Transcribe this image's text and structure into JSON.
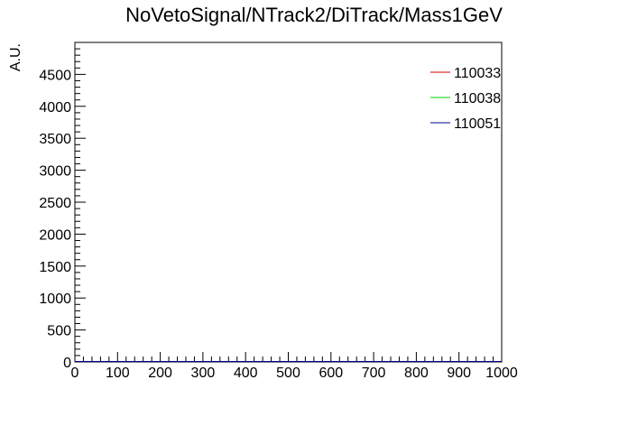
{
  "chart_data": {
    "type": "line",
    "title": "NoVetoSignal/NTrack2/DiTrack/Mass1GeV",
    "xlabel": "",
    "ylabel": "A.U.",
    "xlim": [
      0,
      1000
    ],
    "ylim": [
      0,
      5000
    ],
    "x_ticks": [
      0,
      100,
      200,
      300,
      400,
      500,
      600,
      700,
      800,
      900,
      1000
    ],
    "y_ticks": [
      0,
      500,
      1000,
      1500,
      2000,
      2500,
      3000,
      3500,
      4000,
      4500
    ],
    "grid": false,
    "legend_position": "top-right",
    "series": [
      {
        "name": "110033",
        "color": "#cc0000",
        "values": []
      },
      {
        "name": "110038",
        "color": "#00cc00",
        "values": []
      },
      {
        "name": "110051",
        "color": "#000099",
        "values": []
      }
    ]
  }
}
